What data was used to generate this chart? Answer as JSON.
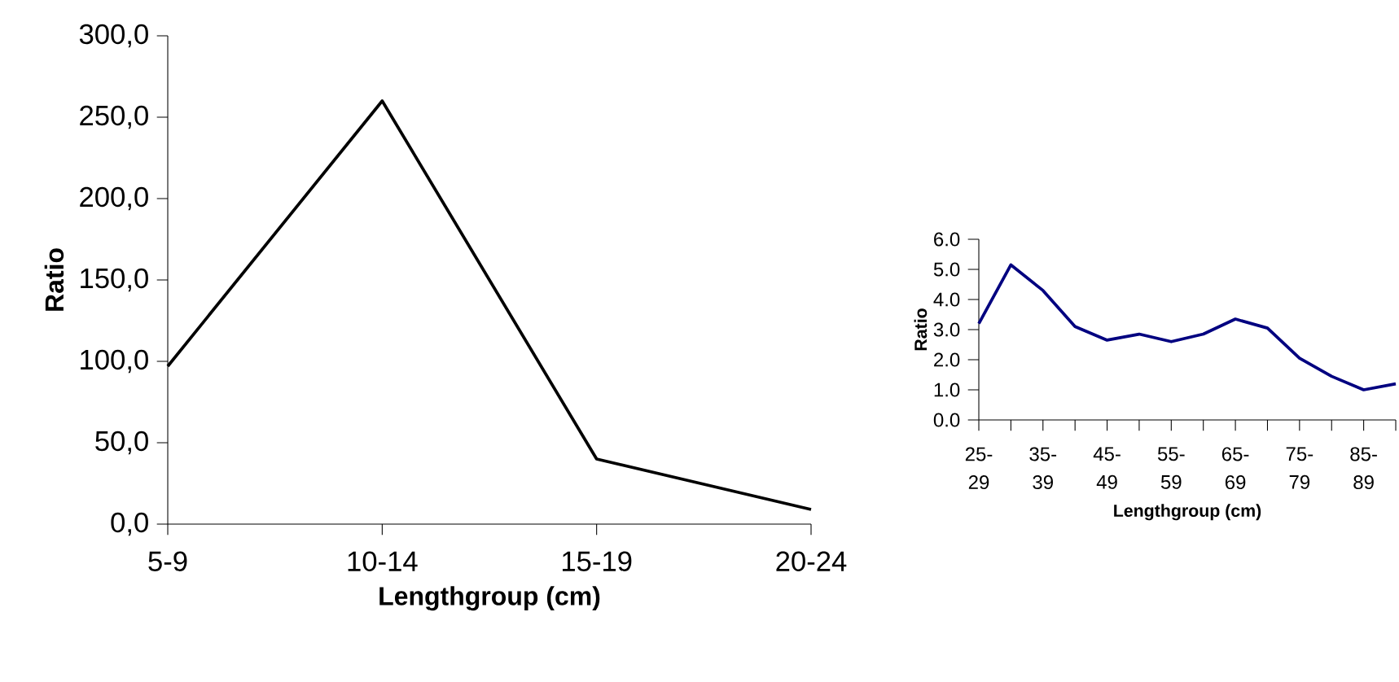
{
  "chart_data": [
    {
      "type": "line",
      "xlabel": "Lengthgroup (cm)",
      "ylabel": "Ratio",
      "categories": [
        "5-9",
        "10-14",
        "15-19",
        "20-24"
      ],
      "values": [
        97,
        260,
        40,
        9
      ],
      "color": "#000000",
      "ylim": [
        0,
        300
      ],
      "yticks": [
        {
          "value": 0,
          "label": "0,0"
        },
        {
          "value": 50,
          "label": "50,0"
        },
        {
          "value": 100,
          "label": "100,0"
        },
        {
          "value": 150,
          "label": "150,0"
        },
        {
          "value": 200,
          "label": "200,0"
        },
        {
          "value": 250,
          "label": "250,0"
        },
        {
          "value": 300,
          "label": "300,0"
        }
      ]
    },
    {
      "type": "line",
      "xlabel": "Lengthgroup (cm)",
      "ylabel": "Ratio",
      "categories": [
        "25-29",
        null,
        "35-39",
        null,
        "45-49",
        null,
        "55-59",
        null,
        "65-69",
        null,
        "75-79",
        null,
        "85-89",
        null
      ],
      "values": [
        3.2,
        5.15,
        4.3,
        3.1,
        2.65,
        2.85,
        2.6,
        2.85,
        3.35,
        3.05,
        2.05,
        1.45,
        1.0,
        1.2
      ],
      "color": "#000080",
      "ylim": [
        0,
        6
      ],
      "yticks": [
        {
          "value": 0,
          "label": "0.0"
        },
        {
          "value": 1,
          "label": "1.0"
        },
        {
          "value": 2,
          "label": "2.0"
        },
        {
          "value": 3,
          "label": "3.0"
        },
        {
          "value": 4,
          "label": "4.0"
        },
        {
          "value": 5,
          "label": "5.0"
        },
        {
          "value": 6,
          "label": "6.0"
        }
      ]
    }
  ]
}
